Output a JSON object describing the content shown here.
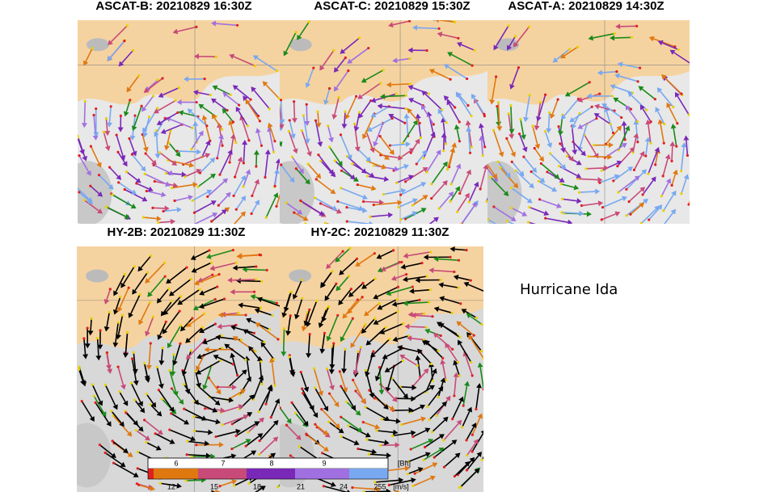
{
  "panels": [
    {
      "title": "ASCAT-B: 20210829 16:30Z"
    },
    {
      "title": "ASCAT-C: 20210829 15:30Z"
    },
    {
      "title": "ASCAT-A: 20210829 14:30Z"
    },
    {
      "title": "HY-2B: 20210829 11:30Z"
    },
    {
      "title": "HY-2C: 20210829 11:30Z"
    }
  ],
  "annotation": "Hurricane Ida",
  "colorbar": {
    "bft_labels": [
      "6",
      "7",
      "8",
      "9"
    ],
    "bft_unit": "[Bft]",
    "ms_labels": [
      "12",
      "15",
      "18",
      "21",
      "24",
      "255"
    ],
    "ms_unit": "[m/s]"
  }
}
